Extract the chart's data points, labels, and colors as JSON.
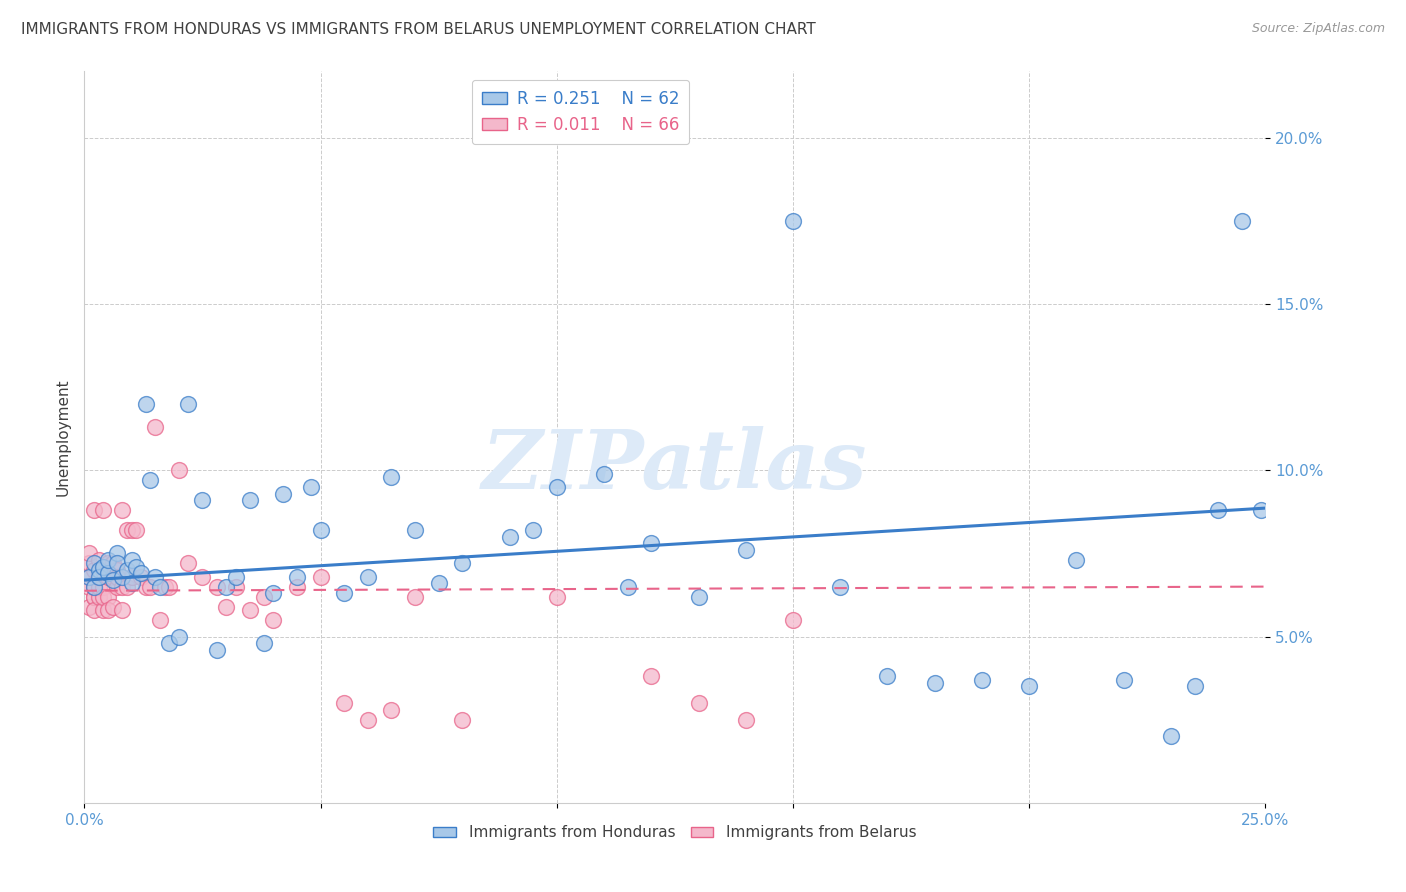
{
  "title": "IMMIGRANTS FROM HONDURAS VS IMMIGRANTS FROM BELARUS UNEMPLOYMENT CORRELATION CHART",
  "source": "Source: ZipAtlas.com",
  "ylabel": "Unemployment",
  "xlim": [
    0.0,
    0.25
  ],
  "ylim": [
    0.0,
    0.22
  ],
  "xticks": [
    0.0,
    0.25
  ],
  "yticks": [
    0.05,
    0.1,
    0.15,
    0.2
  ],
  "ytick_labels": [
    "5.0%",
    "10.0%",
    "15.0%",
    "20.0%"
  ],
  "xtick_labels": [
    "0.0%",
    "25.0%"
  ],
  "legend_R1": "R = 0.251",
  "legend_N1": "N = 62",
  "legend_R2": "R = 0.011",
  "legend_N2": "N = 66",
  "color_blue": "#a8c8e8",
  "color_pink": "#f4b8cb",
  "color_blue_line": "#3a7dc9",
  "color_pink_line": "#e8648a",
  "color_title": "#404040",
  "color_source": "#999999",
  "color_axis_label": "#5b9bd5",
  "color_watermark": "#ddeaf8",
  "watermark": "ZIPatlas",
  "background_color": "#ffffff",
  "grid_color": "#cccccc",
  "title_fontsize": 11,
  "axis_label_fontsize": 11,
  "tick_fontsize": 11,
  "hon_R": 0.251,
  "bel_R": 0.011,
  "hon_N": 62,
  "bel_N": 66,
  "honduras_x": [
    0.001,
    0.002,
    0.002,
    0.003,
    0.003,
    0.004,
    0.005,
    0.005,
    0.006,
    0.007,
    0.007,
    0.008,
    0.009,
    0.01,
    0.01,
    0.011,
    0.012,
    0.013,
    0.014,
    0.015,
    0.016,
    0.018,
    0.02,
    0.022,
    0.025,
    0.028,
    0.03,
    0.032,
    0.035,
    0.038,
    0.04,
    0.042,
    0.045,
    0.048,
    0.05,
    0.055,
    0.06,
    0.065,
    0.07,
    0.075,
    0.08,
    0.09,
    0.095,
    0.1,
    0.11,
    0.115,
    0.12,
    0.13,
    0.14,
    0.15,
    0.16,
    0.17,
    0.18,
    0.19,
    0.2,
    0.21,
    0.22,
    0.23,
    0.235,
    0.24,
    0.245,
    0.249
  ],
  "honduras_y": [
    0.068,
    0.072,
    0.065,
    0.07,
    0.068,
    0.071,
    0.069,
    0.073,
    0.067,
    0.075,
    0.072,
    0.068,
    0.07,
    0.073,
    0.066,
    0.071,
    0.069,
    0.12,
    0.097,
    0.068,
    0.065,
    0.048,
    0.05,
    0.12,
    0.091,
    0.046,
    0.065,
    0.068,
    0.091,
    0.048,
    0.063,
    0.093,
    0.068,
    0.095,
    0.082,
    0.063,
    0.068,
    0.098,
    0.082,
    0.066,
    0.072,
    0.08,
    0.082,
    0.095,
    0.099,
    0.065,
    0.078,
    0.062,
    0.076,
    0.175,
    0.065,
    0.038,
    0.036,
    0.037,
    0.035,
    0.073,
    0.037,
    0.02,
    0.035,
    0.088,
    0.175,
    0.088
  ],
  "belarus_x": [
    0.001,
    0.001,
    0.001,
    0.001,
    0.001,
    0.002,
    0.002,
    0.002,
    0.002,
    0.002,
    0.002,
    0.003,
    0.003,
    0.003,
    0.003,
    0.003,
    0.004,
    0.004,
    0.004,
    0.004,
    0.005,
    0.005,
    0.005,
    0.005,
    0.006,
    0.006,
    0.006,
    0.007,
    0.007,
    0.007,
    0.008,
    0.008,
    0.008,
    0.009,
    0.009,
    0.01,
    0.01,
    0.011,
    0.012,
    0.013,
    0.014,
    0.015,
    0.016,
    0.017,
    0.018,
    0.02,
    0.022,
    0.025,
    0.028,
    0.03,
    0.032,
    0.035,
    0.038,
    0.04,
    0.045,
    0.05,
    0.055,
    0.06,
    0.065,
    0.07,
    0.08,
    0.1,
    0.12,
    0.13,
    0.14,
    0.15
  ],
  "belarus_y": [
    0.068,
    0.072,
    0.065,
    0.059,
    0.075,
    0.062,
    0.088,
    0.062,
    0.07,
    0.058,
    0.065,
    0.068,
    0.062,
    0.073,
    0.065,
    0.068,
    0.065,
    0.088,
    0.058,
    0.062,
    0.062,
    0.068,
    0.072,
    0.058,
    0.059,
    0.072,
    0.068,
    0.065,
    0.07,
    0.068,
    0.065,
    0.088,
    0.058,
    0.082,
    0.065,
    0.082,
    0.068,
    0.082,
    0.068,
    0.065,
    0.065,
    0.113,
    0.055,
    0.065,
    0.065,
    0.1,
    0.072,
    0.068,
    0.065,
    0.059,
    0.065,
    0.058,
    0.062,
    0.055,
    0.065,
    0.068,
    0.03,
    0.025,
    0.028,
    0.062,
    0.025,
    0.062,
    0.038,
    0.03,
    0.025,
    0.055
  ]
}
